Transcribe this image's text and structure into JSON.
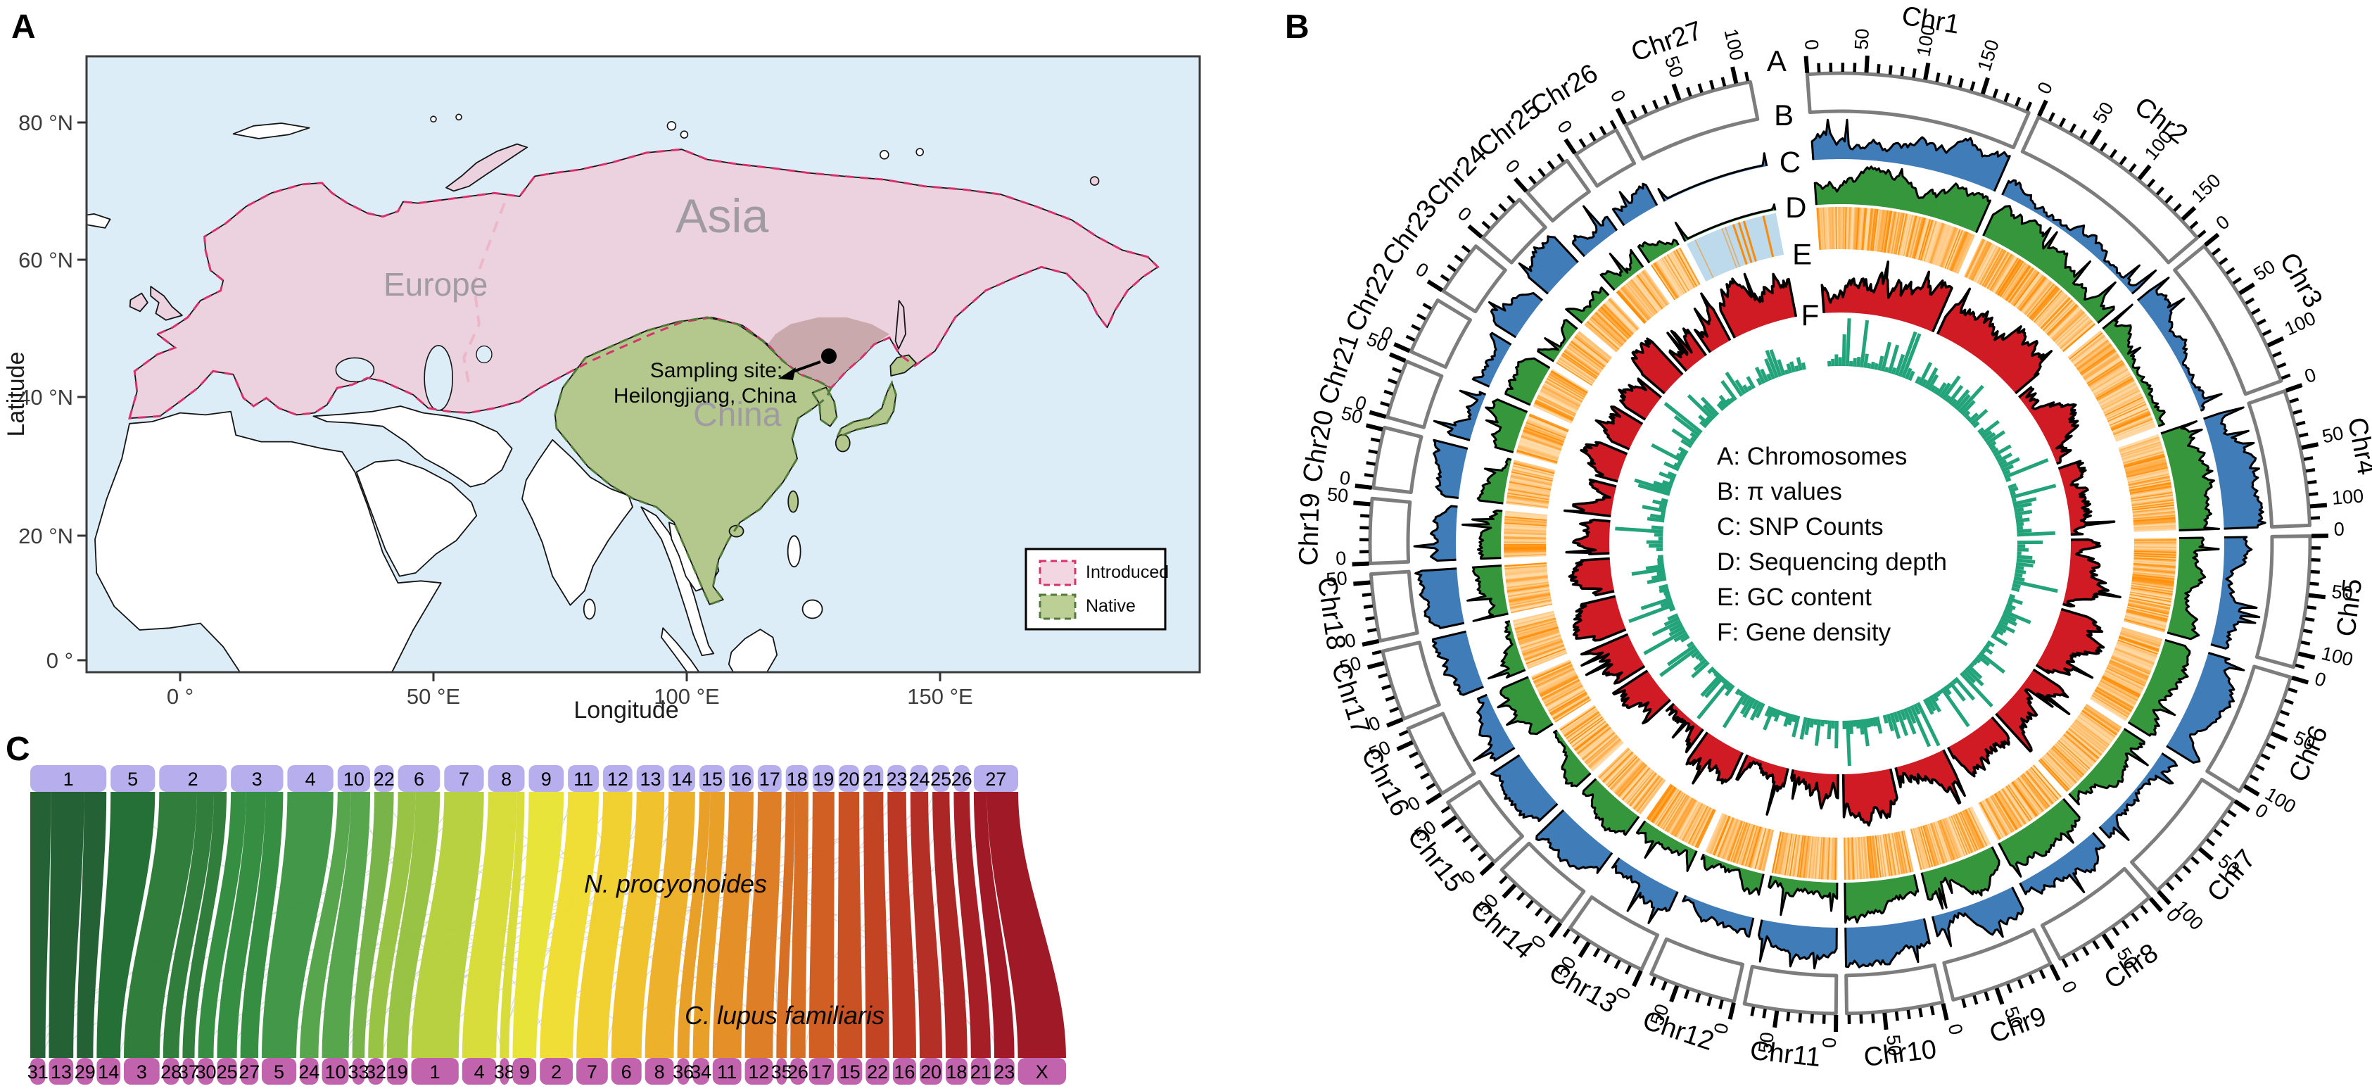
{
  "panelA": {
    "label": "A",
    "xlabel": "Longitude",
    "ylabel": "Latitude",
    "x_ticks": [
      "0 °",
      "50 °E",
      "100 °E",
      "150 °E"
    ],
    "y_ticks": [
      "80 °N",
      "60 °N",
      "40 °N",
      "20 °N",
      "0 °"
    ],
    "region_labels": {
      "europe": "Europe",
      "asia": "Asia",
      "china": "China"
    },
    "sampling_line1": "Sampling site:",
    "sampling_line2": "Heilongjiang, China",
    "legend": {
      "items": [
        {
          "label": "Introduced",
          "fill": "#f2d7e2",
          "border": "#d6336c"
        },
        {
          "label": "Native",
          "fill": "#bcd096",
          "border": "#53793b"
        }
      ]
    },
    "colors": {
      "ocean": "#dcedf7",
      "land": "#ffffff",
      "introduced": "#ecd2de",
      "native": "#b4c88e",
      "overlap": "#c7a5a8",
      "coast": "#141414",
      "divider": "#ecb7c7"
    }
  },
  "panelB": {
    "label": "B",
    "track_labels": [
      "A",
      "B",
      "C",
      "D",
      "E",
      "F"
    ],
    "center_legend": [
      "A: Chromosomes",
      "B: π values",
      "C: SNP Counts",
      "D: Sequencing depth",
      "E: GC content",
      "F: Gene density"
    ],
    "tick_minor_mb": 10,
    "tick_major_mb": 50,
    "seed": 7,
    "chromosomes": [
      {
        "name": "Chr1",
        "size_mb_approx": 192
      },
      {
        "name": "Chr2",
        "size_mb_approx": 170
      },
      {
        "name": "Chr3",
        "size_mb_approx": 132
      },
      {
        "name": "Chr4",
        "size_mb_approx": 116
      },
      {
        "name": "Chr5",
        "size_mb_approx": 112
      },
      {
        "name": "Chr6",
        "size_mb_approx": 106
      },
      {
        "name": "Chr7",
        "size_mb_approx": 100
      },
      {
        "name": "Chr8",
        "size_mb_approx": 92
      },
      {
        "name": "Chr9",
        "size_mb_approx": 88
      },
      {
        "name": "Chr10",
        "size_mb_approx": 82
      },
      {
        "name": "Chr11",
        "size_mb_approx": 78
      },
      {
        "name": "Chr12",
        "size_mb_approx": 74
      },
      {
        "name": "Chr13",
        "size_mb_approx": 70
      },
      {
        "name": "Chr14",
        "size_mb_approx": 67
      },
      {
        "name": "Chr15",
        "size_mb_approx": 64
      },
      {
        "name": "Chr16",
        "size_mb_approx": 62
      },
      {
        "name": "Chr17",
        "size_mb_approx": 60
      },
      {
        "name": "Chr18",
        "size_mb_approx": 57
      },
      {
        "name": "Chr19",
        "size_mb_approx": 55
      },
      {
        "name": "Chr20",
        "size_mb_approx": 52
      },
      {
        "name": "Chr21",
        "size_mb_approx": 50
      },
      {
        "name": "Chr22",
        "size_mb_approx": 49
      },
      {
        "name": "Chr23",
        "size_mb_approx": 47
      },
      {
        "name": "Chr24",
        "size_mb_approx": 45
      },
      {
        "name": "Chr25",
        "size_mb_approx": 43
      },
      {
        "name": "Chr26",
        "size_mb_approx": 40
      },
      {
        "name": "Chr27",
        "size_mb_approx": 112,
        "depth_highlight": true
      }
    ],
    "colors": {
      "box_stroke": "#7d7d7d",
      "tick": "#000000",
      "pi": "#3f7cb8",
      "snp": "#36963c",
      "depth_light": "#ffdcab",
      "depth_dark": "#ff8a00",
      "depth_x_bg": "#bdd9ec",
      "gc": "#d01b24",
      "gene": "#22a37a"
    }
  },
  "panelC": {
    "label": "C",
    "top_species": "N. procyonoides",
    "bottom_species": "C. lupus familiaris",
    "top_boxes": [
      "1",
      "5",
      "2",
      "3",
      "4",
      "10",
      "22",
      "6",
      "7",
      "8",
      "9",
      "11",
      "12",
      "13",
      "14",
      "15",
      "16",
      "17",
      "18",
      "19",
      "20",
      "21",
      "23",
      "24",
      "25",
      "26",
      "27"
    ],
    "bottom_boxes": [
      "31",
      "13",
      "29",
      "14",
      "3",
      "28",
      "37",
      "30",
      "25",
      "27",
      "5",
      "24",
      "10",
      "33",
      "32",
      "19",
      "1",
      "4",
      "38",
      "9",
      "2",
      "7",
      "6",
      "8",
      "36",
      "34",
      "11",
      "12",
      "35",
      "26",
      "17",
      "15",
      "22",
      "16",
      "20",
      "18",
      "21",
      "23",
      "X"
    ],
    "bottom_weights": [
      39,
      63,
      42,
      61,
      92,
      41,
      31,
      40,
      51,
      46,
      89,
      48,
      69,
      32,
      39,
      54,
      122,
      88,
      24,
      61,
      85,
      81,
      78,
      74,
      31,
      42,
      74,
      72,
      27,
      39,
      64,
      64,
      61,
      60,
      58,
      56,
      51,
      52,
      124
    ],
    "links": [
      {
        "t": 0,
        "b": [
          0,
          1,
          2
        ]
      },
      {
        "t": 1,
        "b": [
          3
        ]
      },
      {
        "t": 2,
        "b": [
          4,
          5,
          6
        ]
      },
      {
        "t": 3,
        "b": [
          7,
          8,
          9
        ]
      },
      {
        "t": 4,
        "b": [
          10
        ]
      },
      {
        "t": 5,
        "b": [
          11,
          12
        ]
      },
      {
        "t": 6,
        "b": [
          13
        ]
      },
      {
        "t": 7,
        "b": [
          14,
          15
        ]
      },
      {
        "t": 8,
        "b": [
          16
        ]
      },
      {
        "t": 9,
        "b": [
          17,
          18
        ]
      },
      {
        "t": 10,
        "b": [
          19
        ]
      },
      {
        "t": 11,
        "b": [
          20
        ]
      },
      {
        "t": 12,
        "b": [
          21
        ]
      },
      {
        "t": 13,
        "b": [
          22
        ]
      },
      {
        "t": 14,
        "b": [
          23
        ]
      },
      {
        "t": 15,
        "b": [
          24,
          25
        ]
      },
      {
        "t": 16,
        "b": [
          26
        ]
      },
      {
        "t": 17,
        "b": [
          27
        ]
      },
      {
        "t": 18,
        "b": [
          28,
          29
        ]
      },
      {
        "t": 19,
        "b": [
          30
        ]
      },
      {
        "t": 20,
        "b": [
          31
        ]
      },
      {
        "t": 21,
        "b": [
          32
        ]
      },
      {
        "t": 22,
        "b": [
          33
        ]
      },
      {
        "t": 23,
        "b": [
          34
        ]
      },
      {
        "t": 24,
        "b": [
          35
        ]
      },
      {
        "t": 25,
        "b": [
          36
        ]
      },
      {
        "t": 26,
        "b": [
          37,
          38
        ]
      }
    ],
    "palette": [
      "#1d5c2e",
      "#1e6b31",
      "#2a7a36",
      "#2f8a3c",
      "#3c9442",
      "#52a347",
      "#74b244",
      "#96c13f",
      "#b5cf3b",
      "#d8dc35",
      "#e8e334",
      "#efdd2f",
      "#f0cf2a",
      "#eec027",
      "#ecae24",
      "#e89d22",
      "#e38b20",
      "#dd7a1f",
      "#d66a1e",
      "#cf5a1d",
      "#c84b1c",
      "#c13e1c",
      "#ba321d",
      "#b2281e",
      "#aa1f1f",
      "#a3181f",
      "#9c121f"
    ],
    "colors": {
      "top_box": "#b7aeee",
      "bottom_box": "#c263ae",
      "minor_link": "#c9c9c9"
    }
  }
}
